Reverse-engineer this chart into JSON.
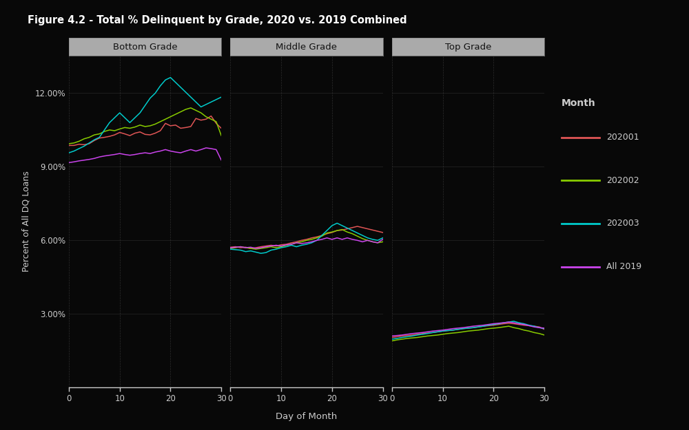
{
  "title": "Figure 4.2 - Total % Delinquent by Grade, 2020 vs. 2019 Combined",
  "panels": [
    "Bottom Grade",
    "Middle Grade",
    "Top Grade"
  ],
  "ylabel": "Percent of All DQ Loans",
  "xlabel": "Day of Month",
  "xlim": [
    0,
    30
  ],
  "ylim": [
    0.0,
    0.135
  ],
  "ytick_vals": [
    0.03,
    0.06,
    0.09,
    0.12
  ],
  "ytick_labels": [
    "3.00%",
    "6.00%",
    "9.00%",
    "12.00%"
  ],
  "background_color": "#080808",
  "panel_header_bg": "#aaaaaa",
  "grid_color_solid": "#444444",
  "grid_color_dash": "#444444",
  "text_color": "#cccccc",
  "title_color": "#ffffff",
  "axis_line_color": "#cccccc",
  "legend_title": "Month",
  "series": [
    {
      "label": "202001",
      "color": "#e05555"
    },
    {
      "label": "202002",
      "color": "#88cc00"
    },
    {
      "label": "202003",
      "color": "#00cccc"
    },
    {
      "label": "All 2019",
      "color": "#cc44ee"
    }
  ],
  "bottom_202001": [
    9.85,
    9.85,
    9.9,
    9.88,
    9.92,
    10.05,
    10.15,
    10.18,
    10.22,
    10.28,
    10.38,
    10.32,
    10.25,
    10.35,
    10.4,
    10.3,
    10.28,
    10.35,
    10.45,
    10.75,
    10.65,
    10.68,
    10.55,
    10.58,
    10.62,
    10.95,
    10.88,
    10.92,
    11.05,
    10.75,
    10.55
  ],
  "bottom_202002": [
    9.92,
    9.95,
    10.02,
    10.12,
    10.18,
    10.28,
    10.32,
    10.42,
    10.48,
    10.45,
    10.52,
    10.58,
    10.55,
    10.6,
    10.68,
    10.62,
    10.65,
    10.72,
    10.82,
    10.92,
    11.02,
    11.12,
    11.22,
    11.32,
    11.38,
    11.28,
    11.18,
    11.02,
    10.92,
    10.82,
    10.25
  ],
  "bottom_202003": [
    9.55,
    9.62,
    9.72,
    9.82,
    9.95,
    10.08,
    10.18,
    10.48,
    10.78,
    10.98,
    11.18,
    10.98,
    10.78,
    10.98,
    11.18,
    11.48,
    11.78,
    11.98,
    12.28,
    12.52,
    12.62,
    12.42,
    12.22,
    12.02,
    11.82,
    11.62,
    11.42,
    11.52,
    11.62,
    11.72,
    11.82
  ],
  "bottom_all2019": [
    9.15,
    9.18,
    9.22,
    9.25,
    9.28,
    9.32,
    9.38,
    9.42,
    9.45,
    9.48,
    9.52,
    9.48,
    9.45,
    9.48,
    9.52,
    9.55,
    9.52,
    9.58,
    9.62,
    9.68,
    9.62,
    9.58,
    9.55,
    9.62,
    9.68,
    9.62,
    9.68,
    9.75,
    9.72,
    9.68,
    9.25
  ],
  "middle_202001": [
    5.7,
    5.72,
    5.68,
    5.7,
    5.65,
    5.68,
    5.72,
    5.75,
    5.78,
    5.75,
    5.8,
    5.82,
    5.88,
    5.92,
    5.98,
    6.02,
    6.08,
    6.12,
    6.18,
    6.25,
    6.3,
    6.38,
    6.4,
    6.45,
    6.5,
    6.55,
    6.5,
    6.45,
    6.4,
    6.35,
    6.3
  ],
  "middle_202002": [
    5.65,
    5.68,
    5.72,
    5.68,
    5.65,
    5.62,
    5.65,
    5.68,
    5.72,
    5.68,
    5.72,
    5.78,
    5.82,
    5.88,
    5.92,
    5.98,
    6.02,
    6.08,
    6.15,
    6.28,
    6.32,
    6.38,
    6.42,
    6.32,
    6.25,
    6.15,
    6.05,
    5.98,
    5.92,
    5.88,
    5.92
  ],
  "middle_202003": [
    5.62,
    5.6,
    5.58,
    5.52,
    5.55,
    5.5,
    5.45,
    5.48,
    5.58,
    5.62,
    5.68,
    5.72,
    5.78,
    5.72,
    5.78,
    5.82,
    5.88,
    5.98,
    6.18,
    6.38,
    6.58,
    6.68,
    6.58,
    6.48,
    6.38,
    6.28,
    6.18,
    6.08,
    6.02,
    5.98,
    6.08
  ],
  "middle_all2019": [
    5.68,
    5.7,
    5.72,
    5.68,
    5.7,
    5.65,
    5.68,
    5.72,
    5.75,
    5.78,
    5.75,
    5.8,
    5.82,
    5.88,
    5.85,
    5.88,
    5.92,
    5.98,
    6.02,
    6.08,
    6.02,
    6.08,
    6.02,
    6.08,
    6.02,
    5.98,
    5.92,
    5.98,
    5.92,
    5.88,
    6.02
  ],
  "top_202001": [
    2.02,
    2.05,
    2.08,
    2.1,
    2.12,
    2.15,
    2.18,
    2.2,
    2.22,
    2.25,
    2.28,
    2.3,
    2.32,
    2.35,
    2.38,
    2.4,
    2.42,
    2.45,
    2.48,
    2.5,
    2.52,
    2.55,
    2.58,
    2.6,
    2.58,
    2.55,
    2.52,
    2.5,
    2.48,
    2.45,
    2.35
  ],
  "top_202002": [
    1.88,
    1.92,
    1.95,
    1.98,
    2.0,
    2.02,
    2.05,
    2.08,
    2.1,
    2.12,
    2.15,
    2.18,
    2.2,
    2.22,
    2.25,
    2.28,
    2.3,
    2.32,
    2.35,
    2.38,
    2.4,
    2.42,
    2.45,
    2.48,
    2.42,
    2.38,
    2.32,
    2.28,
    2.22,
    2.18,
    2.12
  ],
  "top_202003": [
    1.95,
    1.98,
    2.02,
    2.05,
    2.08,
    2.12,
    2.15,
    2.18,
    2.22,
    2.25,
    2.28,
    2.3,
    2.32,
    2.35,
    2.38,
    2.4,
    2.42,
    2.45,
    2.48,
    2.52,
    2.55,
    2.58,
    2.62,
    2.65,
    2.68,
    2.62,
    2.58,
    2.52,
    2.48,
    2.42,
    2.38
  ],
  "top_all2019": [
    2.08,
    2.1,
    2.12,
    2.15,
    2.18,
    2.2,
    2.22,
    2.25,
    2.28,
    2.3,
    2.32,
    2.35,
    2.38,
    2.4,
    2.42,
    2.45,
    2.48,
    2.5,
    2.52,
    2.55,
    2.58,
    2.6,
    2.62,
    2.65,
    2.62,
    2.58,
    2.55,
    2.5,
    2.45,
    2.42,
    2.4
  ]
}
